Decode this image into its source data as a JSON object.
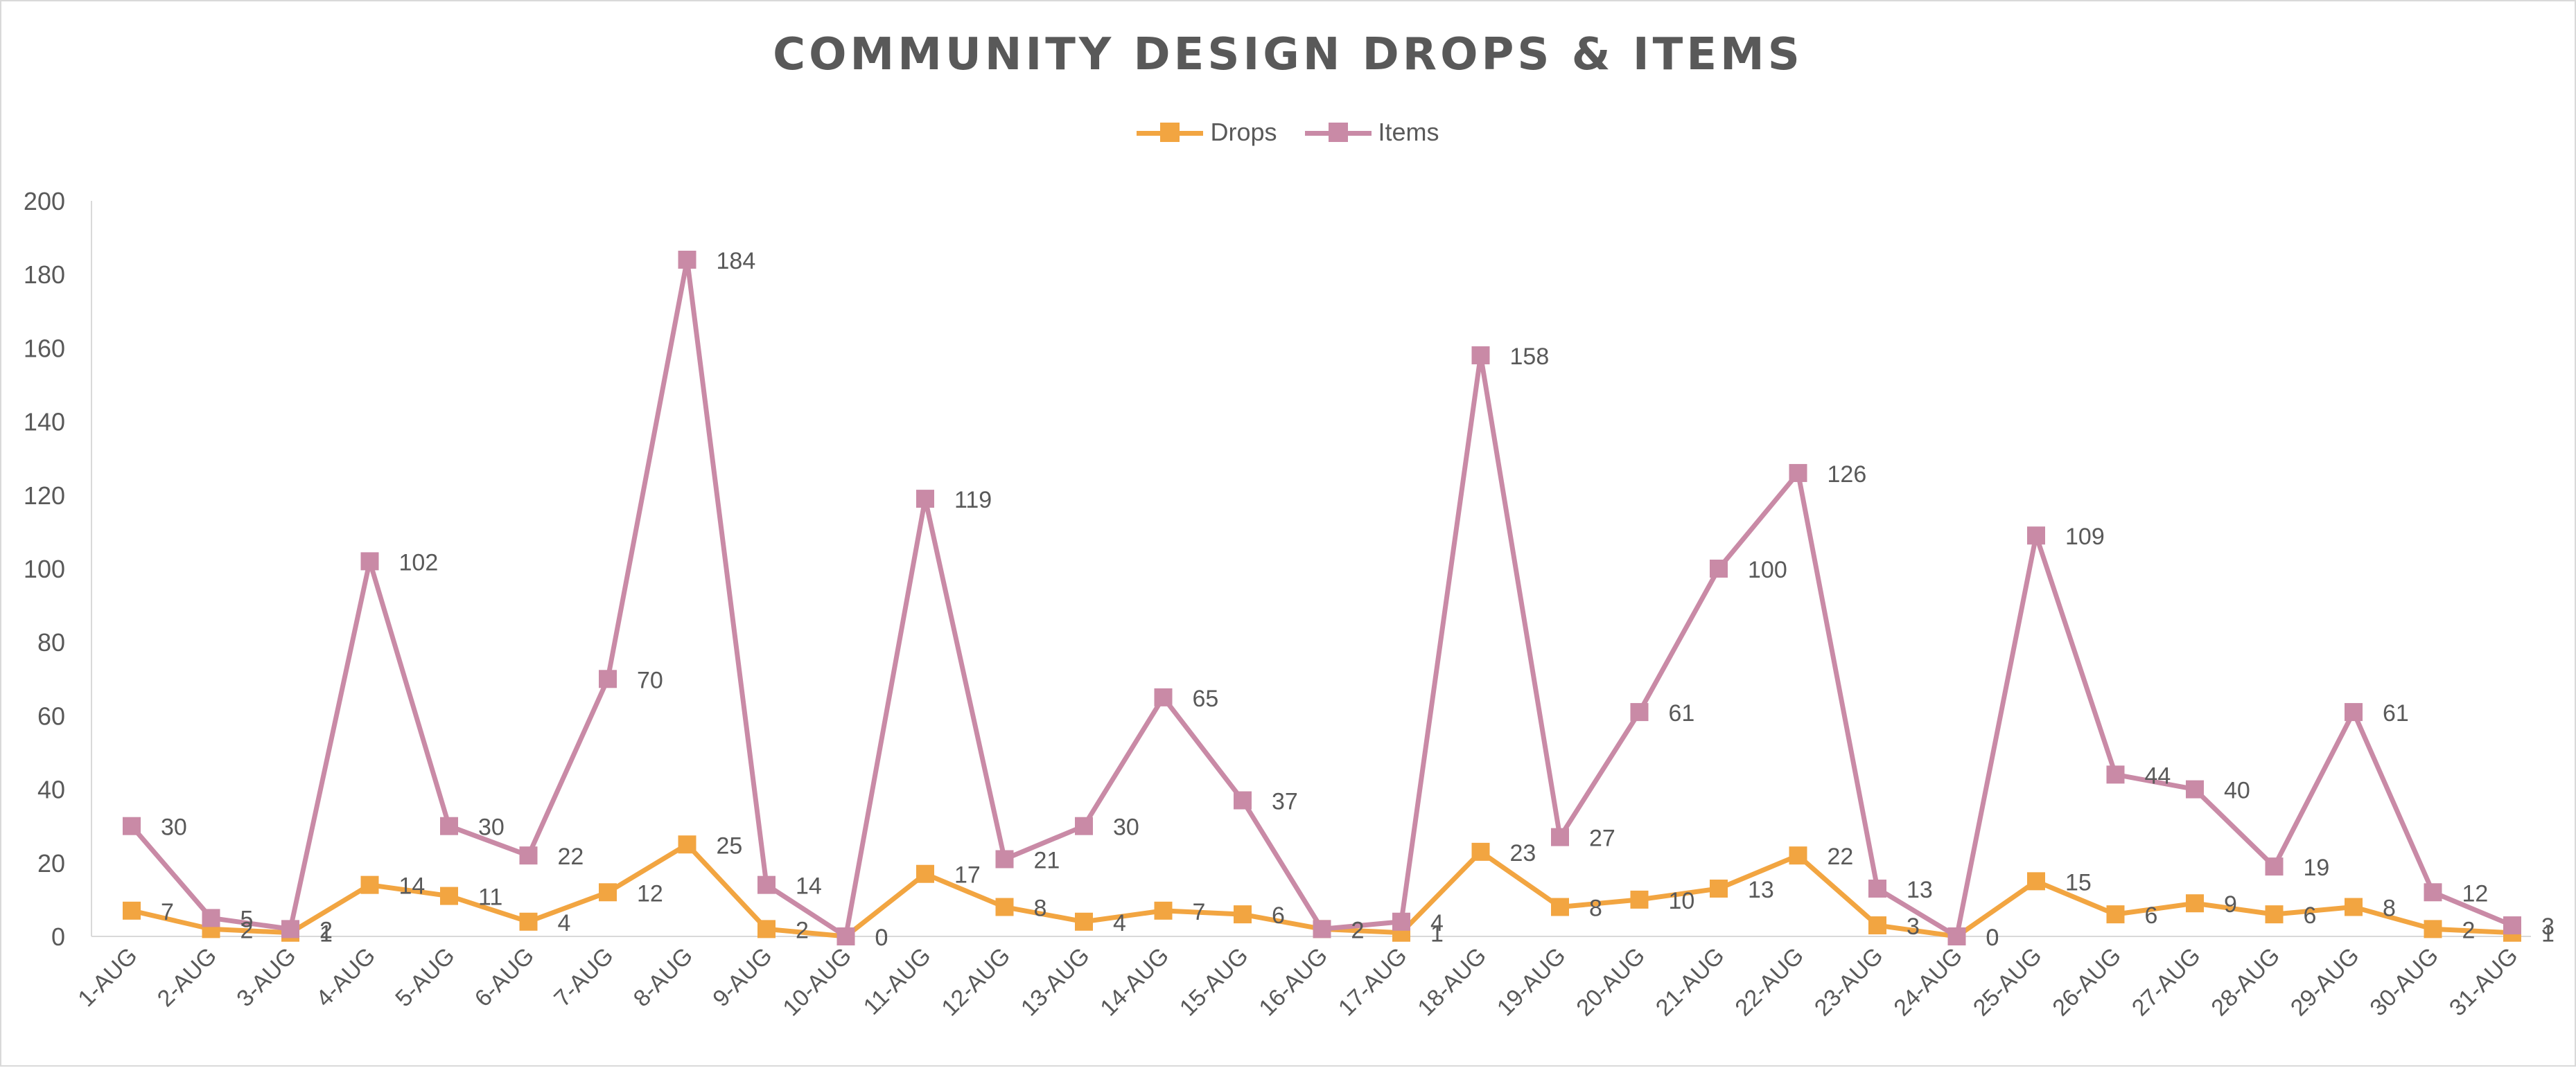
{
  "chart": {
    "title": "COMMUNITY DESIGN DROPS & ITEMS"
  },
  "colors": {
    "drops": "#F2A541",
    "items": "#C98AA6",
    "axis": "#d9d9d9",
    "text": "#595959"
  },
  "chart_data": {
    "type": "line",
    "title": "COMMUNITY DESIGN DROPS & ITEMS",
    "categories": [
      "1-AUG",
      "2-AUG",
      "3-AUG",
      "4-AUG",
      "5-AUG",
      "6-AUG",
      "7-AUG",
      "8-AUG",
      "9-AUG",
      "10-AUG",
      "11-AUG",
      "12-AUG",
      "13-AUG",
      "14-AUG",
      "15-AUG",
      "16-AUG",
      "17-AUG",
      "18-AUG",
      "19-AUG",
      "20-AUG",
      "21-AUG",
      "22-AUG",
      "23-AUG",
      "24-AUG",
      "25-AUG",
      "26-AUG",
      "27-AUG",
      "28-AUG",
      "29-AUG",
      "30-AUG",
      "31-AUG"
    ],
    "series": [
      {
        "name": "Drops",
        "values": [
          7,
          2,
          1,
          14,
          11,
          4,
          12,
          25,
          2,
          0,
          17,
          8,
          4,
          7,
          6,
          2,
          1,
          23,
          8,
          10,
          13,
          22,
          3,
          0,
          15,
          6,
          9,
          6,
          8,
          2,
          1
        ]
      },
      {
        "name": "Items",
        "values": [
          30,
          5,
          2,
          102,
          30,
          22,
          70,
          184,
          14,
          0,
          119,
          21,
          30,
          65,
          37,
          2,
          4,
          158,
          27,
          61,
          100,
          126,
          13,
          0,
          109,
          44,
          40,
          19,
          61,
          12,
          3
        ]
      }
    ],
    "ylim": [
      0,
      200
    ],
    "yticks": [
      0,
      20,
      40,
      60,
      80,
      100,
      120,
      140,
      160,
      180,
      200
    ],
    "xlabel": "",
    "ylabel": "",
    "grid": false,
    "legend_position": "top",
    "data_labels": true,
    "markers": "square"
  }
}
